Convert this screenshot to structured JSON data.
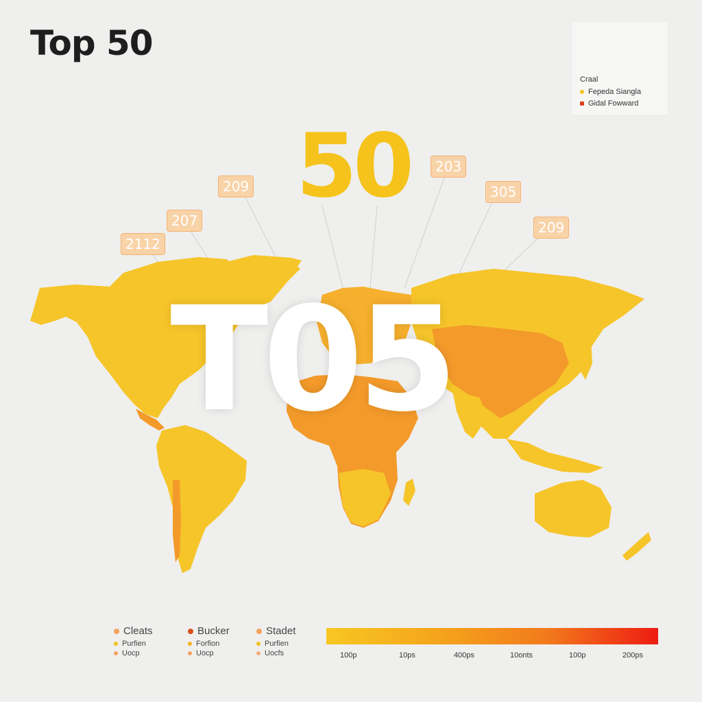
{
  "title": "Top 50",
  "legend": {
    "title": "Craal",
    "items": [
      {
        "label": "Fepeda Siangla",
        "color": "#f5c31c"
      },
      {
        "label": "Gidal Fowward",
        "color": "#d9401c"
      }
    ]
  },
  "big_number": "50",
  "overlay_text": "T05",
  "callouts": [
    "2112",
    "207",
    "209",
    "203",
    "305",
    "209"
  ],
  "bottom_legend": [
    {
      "label": "Cleats",
      "color": "#f2a25e",
      "subs": [
        {
          "label": "Purfien",
          "color": "#f5c31c"
        },
        {
          "label": "Uocp",
          "color": "#f2a25e"
        }
      ]
    },
    {
      "label": "Bucker",
      "color": "#d9501c",
      "subs": [
        {
          "label": "Forfion",
          "color": "#f5b31c"
        },
        {
          "label": "Uocp",
          "color": "#f2a25e"
        }
      ]
    },
    {
      "label": "Stadet",
      "color": "#f2a25e",
      "subs": [
        {
          "label": "Purfien",
          "color": "#f5c31c"
        },
        {
          "label": "Uocfs",
          "color": "#f2b07e"
        }
      ]
    }
  ],
  "scale": {
    "colors": [
      "#f7c722",
      "#f5a51c",
      "#f27a1c",
      "#ee1c12"
    ],
    "ticks": [
      "100p",
      "10ps",
      "400ps",
      "10onts",
      "100p",
      "200ps"
    ]
  }
}
